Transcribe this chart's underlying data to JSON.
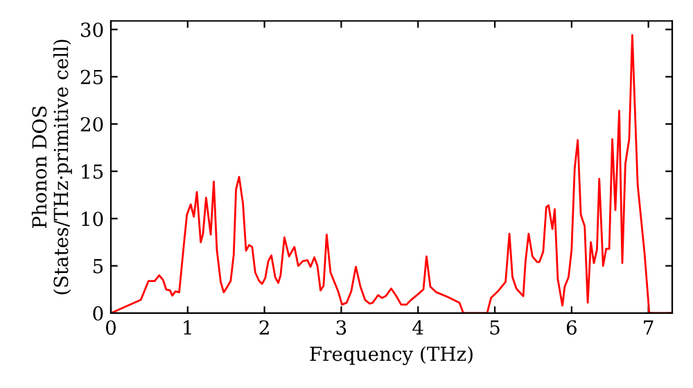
{
  "chart_data": {
    "type": "line",
    "xlabel": "Frequency (THz)",
    "ylabel": "Phonon DOS\n(States/THz·primitive cell)",
    "xlim": [
      0,
      7.31
    ],
    "ylim": [
      0,
      30.9
    ],
    "xticks": [
      0,
      1,
      2,
      3,
      4,
      5,
      6,
      7
    ],
    "yticks": [
      0,
      5,
      10,
      15,
      20,
      25,
      30
    ],
    "grid": false,
    "legend": false,
    "marker": "none",
    "line_style": "solid",
    "series": [
      {
        "color": "#ff0000",
        "x": [
          0,
          0.39,
          0.49,
          0.57,
          0.63,
          0.68,
          0.72,
          0.77,
          0.8,
          0.84,
          0.89,
          0.95,
          0.99,
          1.04,
          1.08,
          1.12,
          1.17,
          1.2,
          1.24,
          1.3,
          1.34,
          1.38,
          1.43,
          1.47,
          1.51,
          1.56,
          1.6,
          1.63,
          1.67,
          1.72,
          1.76,
          1.8,
          1.84,
          1.88,
          1.93,
          1.97,
          2.01,
          2.05,
          2.09,
          2.14,
          2.18,
          2.21,
          2.26,
          2.32,
          2.39,
          2.44,
          2.5,
          2.56,
          2.6,
          2.65,
          2.69,
          2.73,
          2.77,
          2.81,
          2.86,
          2.92,
          2.96,
          3.01,
          3.07,
          3.13,
          3.19,
          3.25,
          3.31,
          3.37,
          3.41,
          3.48,
          3.53,
          3.58,
          3.65,
          3.71,
          3.78,
          3.85,
          3.91,
          4.0,
          4.07,
          4.11,
          4.16,
          4.24,
          4.39,
          4.54,
          4.59,
          4.9,
          4.95,
          5.05,
          5.14,
          5.19,
          5.23,
          5.28,
          5.37,
          5.4,
          5.44,
          5.49,
          5.55,
          5.58,
          5.63,
          5.67,
          5.7,
          5.75,
          5.78,
          5.82,
          5.88,
          5.91,
          5.96,
          6.0,
          6.04,
          6.08,
          6.12,
          6.17,
          6.21,
          6.25,
          6.29,
          6.33,
          6.36,
          6.41,
          6.45,
          6.49,
          6.53,
          6.57,
          6.62,
          6.66,
          6.7,
          6.75,
          6.79,
          6.86,
          6.95,
          7.01,
          7.04,
          7.31
        ],
        "values": [
          0,
          1.4,
          3.4,
          3.4,
          4.0,
          3.5,
          2.5,
          2.4,
          1.85,
          2.3,
          2.2,
          7.2,
          10.4,
          11.5,
          10.2,
          12.8,
          7.5,
          8.4,
          12.2,
          8.3,
          13.9,
          6.7,
          3.3,
          2.2,
          2.7,
          3.4,
          6.2,
          13.1,
          14.4,
          11.6,
          6.6,
          7.2,
          7.0,
          4.3,
          3.4,
          3.1,
          3.7,
          5.5,
          6.1,
          3.8,
          3.2,
          4.0,
          8.0,
          6.0,
          7.0,
          5.0,
          5.5,
          5.6,
          4.9,
          5.9,
          5.0,
          2.4,
          2.9,
          8.3,
          4.3,
          3.1,
          2.3,
          0.9,
          1.1,
          2.3,
          4.9,
          2.8,
          1.4,
          1.0,
          1.1,
          1.9,
          1.6,
          1.8,
          2.6,
          1.9,
          0.9,
          0.9,
          1.4,
          2.0,
          2.5,
          6.0,
          2.8,
          2.2,
          1.7,
          1.1,
          0,
          0,
          1.6,
          2.4,
          3.3,
          8.4,
          3.8,
          2.6,
          1.8,
          5.5,
          8.4,
          6.0,
          5.4,
          5.4,
          6.5,
          11.2,
          11.4,
          8.9,
          11.0,
          3.6,
          0.8,
          2.8,
          3.8,
          6.7,
          15.3,
          18.3,
          10.4,
          9.2,
          1.1,
          7.5,
          5.3,
          6.7,
          14.2,
          5.0,
          6.8,
          6.8,
          18.4,
          10.9,
          21.4,
          5.3,
          15.8,
          18.4,
          29.4,
          13.6,
          6.3,
          0.1,
          0,
          0
        ]
      }
    ]
  }
}
